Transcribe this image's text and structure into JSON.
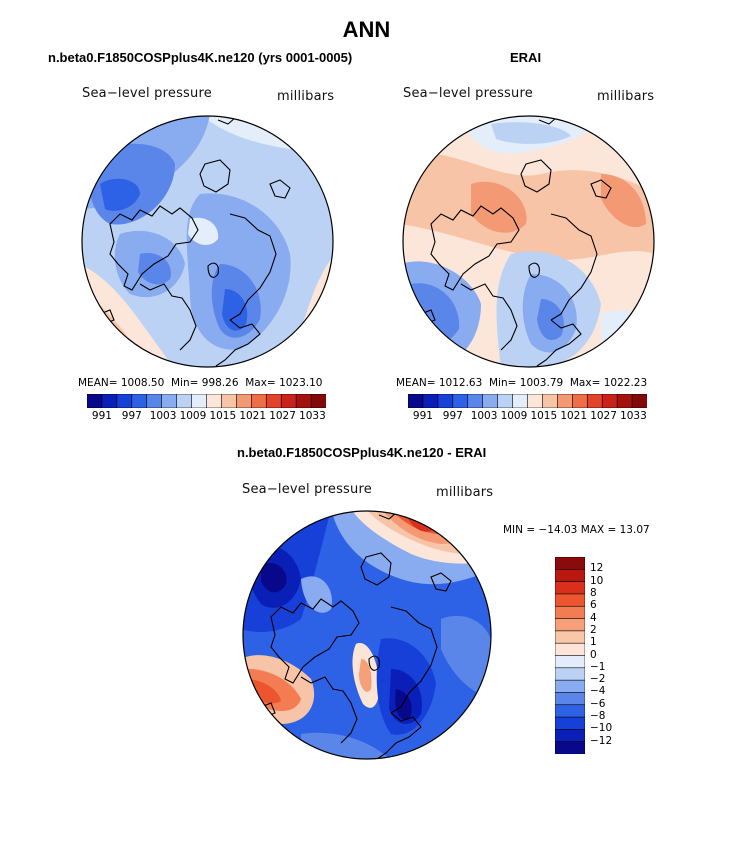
{
  "title": "ANN",
  "panels": [
    {
      "title": "n.beta0.F1850COSPplus4K.ne120 (yrs 0001-0005)",
      "left_label": "Sea−level pressure",
      "right_label": "millibars",
      "stats": {
        "mean_label": "MEAN=",
        "mean": "1008.50",
        "min_label": "Min=",
        "min": "998.26",
        "max_label": "Max=",
        "max": "1023.10"
      }
    },
    {
      "title": "ERAI",
      "left_label": "Sea−level pressure",
      "right_label": "millibars",
      "stats": {
        "mean_label": "MEAN=",
        "mean": "1012.63",
        "min_label": "Min=",
        "min": "1003.79",
        "max_label": "Max=",
        "max": "1022.23"
      }
    }
  ],
  "diff_panel": {
    "title": "n.beta0.F1850COSPplus4K.ne120 - ERAI",
    "left_label": "Sea−level pressure",
    "right_label": "millibars",
    "minmax": {
      "min_label": "MIN =",
      "min": "−14.03",
      "max_label": "MAX =",
      "max": "13.07"
    }
  },
  "colorbar_top": {
    "labels": [
      "991",
      "997",
      "1003",
      "1009",
      "1015",
      "1021",
      "1027",
      "1033"
    ],
    "colors": [
      "#08088a",
      "#0a1fb8",
      "#1640d8",
      "#2e62e6",
      "#5a86ea",
      "#89abef",
      "#bcd2f5",
      "#e4eefa",
      "#fbe6d9",
      "#f8c4a7",
      "#f39a74",
      "#ee6e47",
      "#e2432a",
      "#c9221a",
      "#a5120e",
      "#820808"
    ]
  },
  "colorbar_diff": {
    "labels": [
      "12",
      "10",
      "8",
      "6",
      "4",
      "2",
      "1",
      "0",
      "−1",
      "−2",
      "−4",
      "−6",
      "−8",
      "−10",
      "−12"
    ],
    "colors": [
      "#8b0a0a",
      "#b8180f",
      "#d8301d",
      "#ec5530",
      "#f37c52",
      "#f6a07a",
      "#f9c6a8",
      "#fce5d6",
      "#e2ecfa",
      "#bcd2f5",
      "#89abef",
      "#5a86ea",
      "#2e62e6",
      "#1640d8",
      "#0a1fb8",
      "#08088a"
    ]
  },
  "chart_data": [
    {
      "type": "heatmap",
      "title": "n.beta0.F1850COSPplus4K.ne120 (yrs 0001-0005)",
      "variable": "Sea-level pressure",
      "units": "millibars",
      "projection": "north polar stereographic",
      "mean": 1008.5,
      "min": 998.26,
      "max": 1023.1,
      "colorbar_levels": [
        991,
        997,
        1003,
        1009,
        1015,
        1021,
        1027,
        1033
      ]
    },
    {
      "type": "heatmap",
      "title": "ERAI",
      "variable": "Sea-level pressure",
      "units": "millibars",
      "projection": "north polar stereographic",
      "mean": 1012.63,
      "min": 1003.79,
      "max": 1022.23,
      "colorbar_levels": [
        991,
        997,
        1003,
        1009,
        1015,
        1021,
        1027,
        1033
      ]
    },
    {
      "type": "heatmap",
      "title": "n.beta0.F1850COSPplus4K.ne120 - ERAI",
      "variable": "Sea-level pressure",
      "units": "millibars",
      "projection": "north polar stereographic",
      "min": -14.03,
      "max": 13.07,
      "colorbar_levels": [
        12,
        10,
        8,
        6,
        4,
        2,
        1,
        0,
        -1,
        -2,
        -4,
        -6,
        -8,
        -10,
        -12
      ]
    }
  ]
}
